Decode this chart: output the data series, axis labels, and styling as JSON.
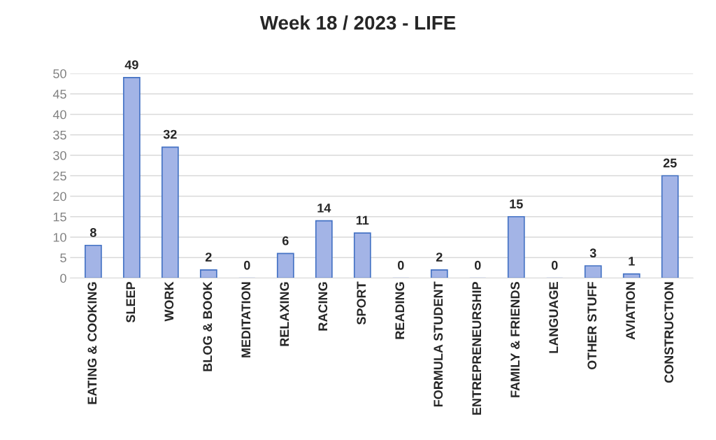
{
  "chart_data": {
    "type": "bar",
    "title": "Week 18 / 2023 - LIFE",
    "categories": [
      "EATING & COOKING",
      "SLEEP",
      "WORK",
      "BLOG & BOOK",
      "MEDITATION",
      "RELAXING",
      "RACING",
      "SPORT",
      "READING",
      "FORMULA STUDENT",
      "ENTREPRENEURSHIP",
      "FAMILY & FRIENDS",
      "LANGUAGE",
      "OTHER STUFF",
      "AVIATION",
      "CONSTRUCTION"
    ],
    "values": [
      8,
      49,
      32,
      2,
      0,
      6,
      14,
      11,
      0,
      2,
      0,
      15,
      0,
      3,
      1,
      25
    ],
    "color": "#a3b4e6",
    "ylim": [
      0,
      50
    ],
    "yticks": [
      0,
      5,
      10,
      15,
      20,
      25,
      30,
      35,
      40,
      45,
      50
    ],
    "grid": "y",
    "data_labels": true,
    "legend": false
  }
}
